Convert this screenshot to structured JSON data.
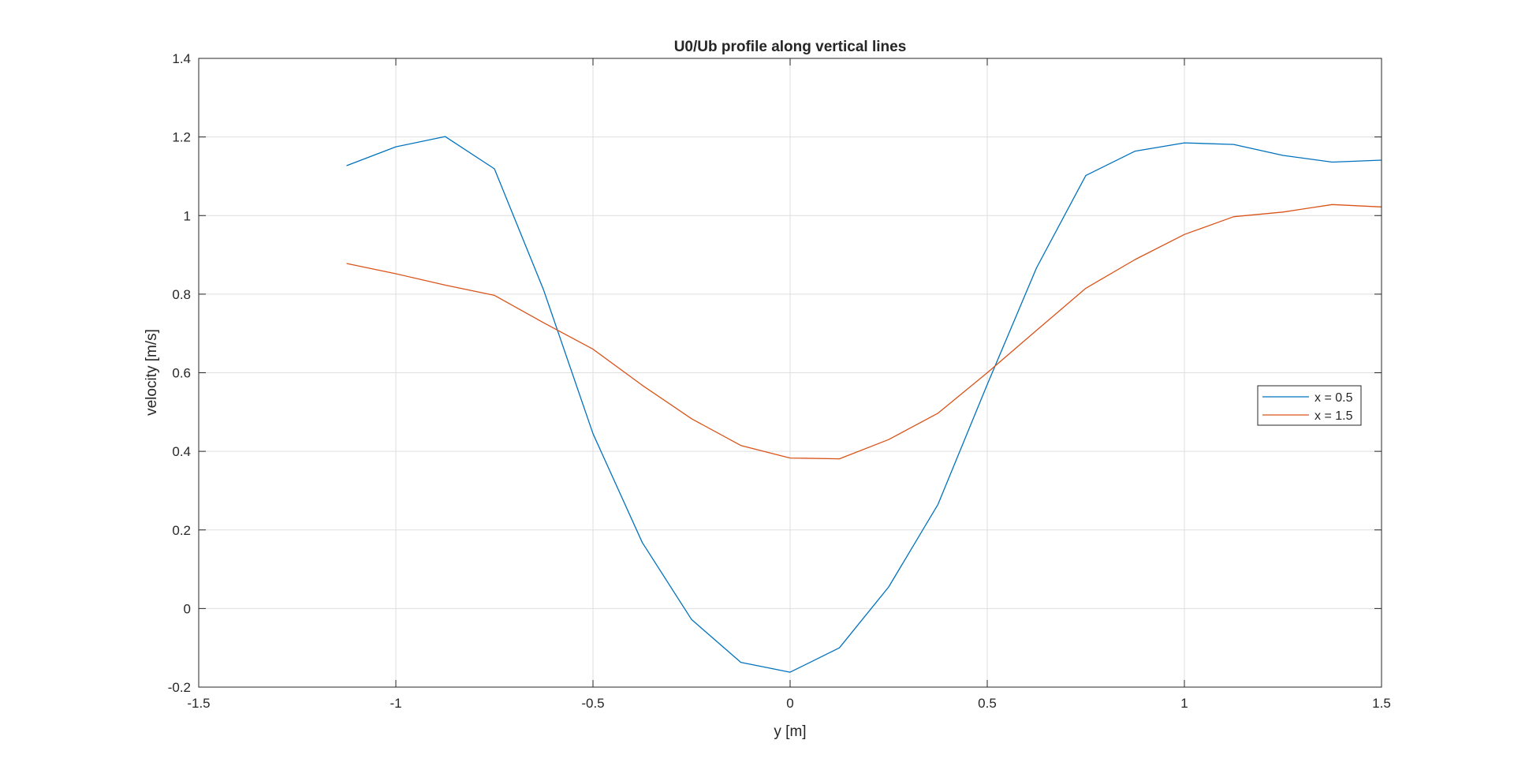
{
  "chart_data": {
    "type": "line",
    "title": "U0/Ub profile along vertical lines",
    "xlabel": "y [m]",
    "ylabel": "velocity [m/s]",
    "xlim": [
      -1.5,
      1.5
    ],
    "ylim": [
      -0.2,
      1.4
    ],
    "xticks": [
      -1.5,
      -1,
      -0.5,
      0,
      0.5,
      1,
      1.5
    ],
    "xtick_labels": [
      "-1.5",
      "-1",
      "-0.5",
      "0",
      "0.5",
      "1",
      "1.5"
    ],
    "yticks": [
      -0.2,
      0,
      0.2,
      0.4,
      0.6,
      0.8,
      1.0,
      1.2,
      1.4
    ],
    "ytick_labels": [
      "-0.2",
      "0",
      "0.2",
      "0.4",
      "0.6",
      "0.8",
      "1",
      "1.2",
      "1.4"
    ],
    "grid": true,
    "legend_position": "right",
    "x": [
      -1.125,
      -1.0,
      -0.875,
      -0.75,
      -0.625,
      -0.5,
      -0.375,
      -0.25,
      -0.125,
      0.0,
      0.125,
      0.25,
      0.375,
      0.5,
      0.625,
      0.75,
      0.875,
      1.0,
      1.125,
      1.25,
      1.375,
      1.5
    ],
    "series": [
      {
        "name": "x = 0.5",
        "color": "#0072BD",
        "values": [
          1.127,
          1.175,
          1.201,
          1.119,
          0.81,
          0.445,
          0.168,
          -0.028,
          -0.137,
          -0.162,
          -0.1,
          0.055,
          0.265,
          0.57,
          0.867,
          1.102,
          1.164,
          1.185,
          1.181,
          1.153,
          1.136,
          1.141
        ]
      },
      {
        "name": "x = 1.5",
        "color": "#D95319",
        "values": [
          0.878,
          0.852,
          0.823,
          0.797,
          0.727,
          0.66,
          0.568,
          0.483,
          0.415,
          0.383,
          0.381,
          0.43,
          0.497,
          0.6,
          0.708,
          0.815,
          0.888,
          0.952,
          0.997,
          1.009,
          1.028,
          1.022
        ]
      }
    ]
  }
}
